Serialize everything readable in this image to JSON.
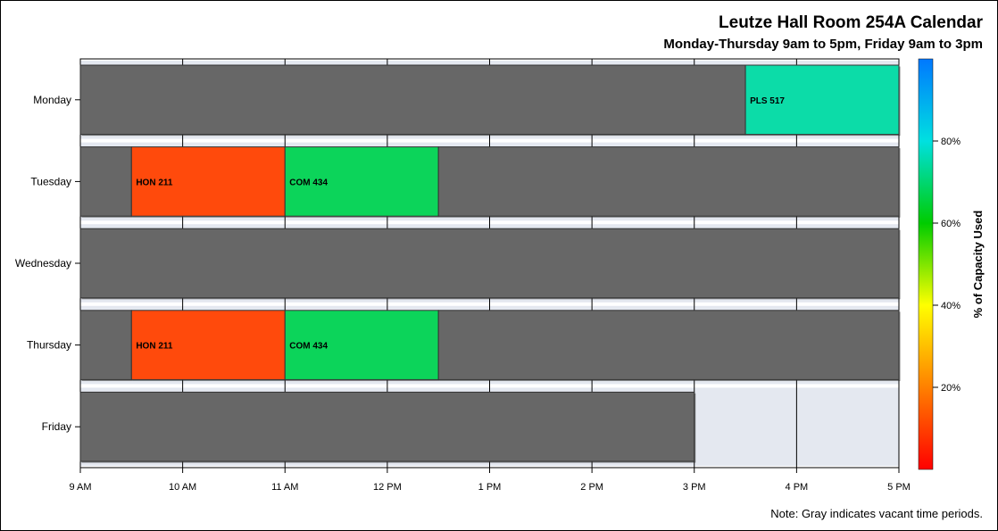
{
  "title": "Leutze Hall Room 254A Calendar",
  "subtitle": "Monday-Thursday 9am to 5pm, Friday 9am to 3pm",
  "footnote": "Note: Gray indicates vacant time periods.",
  "colors": {
    "vacant": "#676767",
    "unavailable": "#e9edf6",
    "row_band": "#e4e8f0",
    "grid": "#000000",
    "gradient_stops": [
      "#ff0000",
      "#ff8000",
      "#ffff00",
      "#00cc00",
      "#00e0e0",
      "#0078ff"
    ]
  },
  "chart_data": {
    "type": "gantt",
    "title": "Leutze Hall Room 254A Calendar",
    "subtitle": "Monday-Thursday 9am to 5pm, Friday 9am to 3pm",
    "x_ticks": [
      "9 AM",
      "10 AM",
      "11 AM",
      "12 PM",
      "1 PM",
      "2 PM",
      "3 PM",
      "4 PM",
      "5 PM"
    ],
    "x_range_hours": [
      9,
      17
    ],
    "days": [
      "Monday",
      "Tuesday",
      "Wednesday",
      "Thursday",
      "Friday"
    ],
    "day_end_hours": [
      17,
      17,
      17,
      17,
      15
    ],
    "blocks": [
      {
        "day": "Monday",
        "start": 9,
        "end": 15.5,
        "label": "",
        "vacant": true
      },
      {
        "day": "Monday",
        "start": 15.5,
        "end": 17,
        "label": "PLS 517",
        "color": "#0cdca8"
      },
      {
        "day": "Tuesday",
        "start": 9,
        "end": 9.5,
        "label": "",
        "vacant": true
      },
      {
        "day": "Tuesday",
        "start": 9.5,
        "end": 11,
        "label": "HON 211",
        "color": "#ff4a0c"
      },
      {
        "day": "Tuesday",
        "start": 11,
        "end": 12.5,
        "label": "COM 434",
        "color": "#0cd45a"
      },
      {
        "day": "Tuesday",
        "start": 12.5,
        "end": 17,
        "label": "",
        "vacant": true
      },
      {
        "day": "Wednesday",
        "start": 9,
        "end": 17,
        "label": "",
        "vacant": true
      },
      {
        "day": "Thursday",
        "start": 9,
        "end": 9.5,
        "label": "",
        "vacant": true
      },
      {
        "day": "Thursday",
        "start": 9.5,
        "end": 11,
        "label": "HON 211",
        "color": "#ff4a0c"
      },
      {
        "day": "Thursday",
        "start": 11,
        "end": 12.5,
        "label": "COM 434",
        "color": "#0cd45a"
      },
      {
        "day": "Thursday",
        "start": 12.5,
        "end": 17,
        "label": "",
        "vacant": true
      },
      {
        "day": "Friday",
        "start": 9,
        "end": 15,
        "label": "",
        "vacant": true
      }
    ],
    "colorbar": {
      "label": "% of Capacity Used",
      "ticks": [
        {
          "value": 20,
          "label": "20%"
        },
        {
          "value": 40,
          "label": "40%"
        },
        {
          "value": 60,
          "label": "60%"
        },
        {
          "value": 80,
          "label": "80%"
        }
      ],
      "range": [
        0,
        100
      ]
    }
  }
}
